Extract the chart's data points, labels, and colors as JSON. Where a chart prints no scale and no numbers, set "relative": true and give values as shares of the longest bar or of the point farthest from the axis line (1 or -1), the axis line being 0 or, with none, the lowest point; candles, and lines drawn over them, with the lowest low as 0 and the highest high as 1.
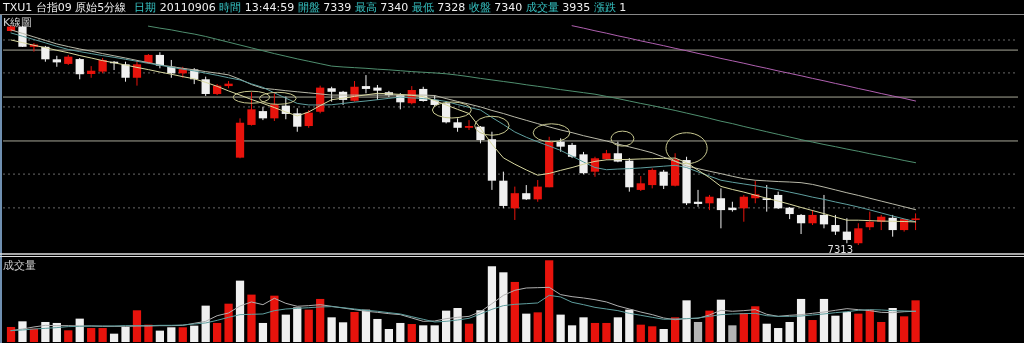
{
  "chart_data": [
    {
      "type": "candlestick",
      "title": "TXU1 台指09 原始5分線",
      "subtitle": "日期 20110906 時間 13:44:59 開盤 7339 最高 7340 最低 7328 收盤 7340 成交量 3935 漲跌 1",
      "ylabel": "K線圖",
      "annotations": [
        "7313"
      ],
      "relative": true,
      "categories": [
        null,
        null,
        null,
        null,
        null,
        null,
        null,
        null,
        null,
        null,
        null,
        null,
        null,
        null,
        null,
        null,
        null,
        null,
        null,
        null,
        null,
        null,
        null,
        null,
        null,
        null,
        null,
        null,
        null,
        null,
        null,
        null,
        null,
        null,
        null,
        null,
        null,
        null,
        null,
        null,
        null,
        null,
        null,
        null,
        null,
        null,
        null,
        null,
        null,
        null,
        null,
        null,
        null,
        null,
        null,
        null,
        null,
        null,
        null,
        null,
        null,
        null,
        null,
        null,
        null,
        null,
        null,
        null,
        null,
        null,
        null,
        null,
        null,
        null,
        null,
        null,
        null,
        null,
        null,
        null
      ],
      "ohlc": [
        [
          0.975,
          1,
          0.972,
          0.995
        ],
        [
          0.995,
          0.998,
          0.902,
          0.903
        ],
        [
          0.903,
          0.92,
          0.881,
          0.913
        ],
        [
          0.903,
          0.907,
          0.835,
          0.846
        ],
        [
          0.846,
          0.862,
          0.812,
          0.832
        ],
        [
          0.825,
          0.866,
          0.82,
          0.858
        ],
        [
          0.847,
          0.852,
          0.755,
          0.778
        ],
        [
          0.779,
          0.815,
          0.762,
          0.794
        ],
        [
          0.79,
          0.852,
          0.782,
          0.843
        ],
        [
          0.835,
          0.838,
          0.797,
          0.832
        ],
        [
          0.823,
          0.835,
          0.744,
          0.762
        ],
        [
          0.762,
          0.843,
          0.726,
          0.823
        ],
        [
          0.828,
          0.87,
          0.825,
          0.866
        ],
        [
          0.866,
          0.878,
          0.805,
          0.817
        ],
        [
          0.812,
          0.843,
          0.762,
          0.782
        ],
        [
          0.782,
          0.812,
          0.762,
          0.805
        ],
        [
          0.8,
          0.806,
          0.733,
          0.755
        ],
        [
          0.755,
          0.767,
          0.679,
          0.688
        ],
        [
          0.688,
          0.733,
          0.683,
          0.726
        ],
        [
          0.724,
          0.747,
          0.714,
          0.735
        ],
        [
          0.398,
          0.577,
          0.395,
          0.557
        ],
        [
          0.547,
          0.696,
          0.544,
          0.618
        ],
        [
          0.61,
          0.63,
          0.569,
          0.577
        ],
        [
          0.577,
          0.691,
          0.565,
          0.641
        ],
        [
          0.635,
          0.676,
          0.573,
          0.597
        ],
        [
          0.6,
          0.623,
          0.516,
          0.539
        ],
        [
          0.542,
          0.615,
          0.534,
          0.603
        ],
        [
          0.607,
          0.726,
          0.6,
          0.717
        ],
        [
          0.714,
          0.721,
          0.653,
          0.698
        ],
        [
          0.698,
          0.702,
          0.638,
          0.661
        ],
        [
          0.657,
          0.747,
          0.653,
          0.721
        ],
        [
          0.724,
          0.774,
          0.691,
          0.711
        ],
        [
          0.717,
          0.729,
          0.661,
          0.703
        ],
        [
          0.696,
          0.702,
          0.674,
          0.683
        ],
        [
          0.683,
          0.692,
          0.618,
          0.65
        ],
        [
          0.646,
          0.724,
          0.641,
          0.706
        ],
        [
          0.711,
          0.721,
          0.653,
          0.656
        ],
        [
          0.661,
          0.683,
          0.63,
          0.638
        ],
        [
          0.646,
          0.656,
          0.554,
          0.559
        ],
        [
          0.559,
          0.577,
          0.516,
          0.534
        ],
        [
          0.534,
          0.569,
          0.524,
          0.542
        ],
        [
          0.539,
          0.542,
          0.463,
          0.478
        ],
        [
          0.482,
          0.516,
          0.251,
          0.293
        ],
        [
          0.293,
          0.334,
          0.167,
          0.178
        ],
        [
          0.167,
          0.266,
          0.114,
          0.236
        ],
        [
          0.236,
          0.273,
          0.205,
          0.208
        ],
        [
          0.208,
          0.296,
          0.197,
          0.266
        ],
        [
          0.263,
          0.493,
          0.263,
          0.471
        ],
        [
          0.471,
          0.486,
          0.425,
          0.448
        ],
        [
          0.456,
          0.465,
          0.396,
          0.402
        ],
        [
          0.413,
          0.424,
          0.322,
          0.327
        ],
        [
          0.334,
          0.402,
          0.311,
          0.395
        ],
        [
          0.392,
          0.433,
          0.387,
          0.418
        ],
        [
          0.418,
          0.471,
          0.377,
          0.38
        ],
        [
          0.384,
          0.396,
          0.243,
          0.263
        ],
        [
          0.251,
          0.314,
          0.246,
          0.281
        ],
        [
          0.273,
          0.349,
          0.258,
          0.342
        ],
        [
          0.334,
          0.342,
          0.255,
          0.27
        ],
        [
          0.27,
          0.418,
          0.267,
          0.39
        ],
        [
          0.387,
          0.402,
          0.182,
          0.19
        ],
        [
          0.197,
          0.251,
          0.174,
          0.187
        ],
        [
          0.19,
          0.228,
          0.159,
          0.22
        ],
        [
          0.213,
          0.258,
          0.076,
          0.159
        ],
        [
          0.17,
          0.197,
          0.152,
          0.159
        ],
        [
          0.167,
          0.228,
          0.106,
          0.22
        ],
        [
          0.213,
          0.292,
          0.19,
          0.231
        ],
        [
          0.213,
          0.273,
          0.152,
          0.205
        ],
        [
          0.228,
          0.243,
          0.164,
          0.167
        ],
        [
          0.17,
          0.173,
          0.118,
          0.141
        ],
        [
          0.137,
          0.141,
          0.05,
          0.099
        ],
        [
          0.099,
          0.159,
          0.091,
          0.137
        ],
        [
          0.137,
          0.228,
          0.076,
          0.094
        ],
        [
          0.091,
          0.137,
          0.046,
          0.061
        ],
        [
          0.061,
          0.122,
          0.008,
          0.023
        ],
        [
          0.008,
          0.099,
          0,
          0.076
        ],
        [
          0.081,
          0.152,
          0.068,
          0.106
        ],
        [
          0.106,
          0.137,
          0.068,
          0.129
        ],
        [
          0.124,
          0.137,
          0.038,
          0.068
        ],
        [
          0.068,
          0.118,
          0.061,
          0.118
        ],
        [
          0.117,
          0.144,
          0.068,
          0.121
        ]
      ],
      "colors": [
        "#e8130c",
        "#f0f0f0",
        "#e8130c",
        "#f0f0f0",
        "#f0f0f0",
        "#e8130c",
        "#f0f0f0",
        "#e8130c",
        "#e8130c",
        "#f0f0f0",
        "#f0f0f0",
        "#e8130c",
        "#e8130c",
        "#f0f0f0",
        "#f0f0f0",
        "#e8130c",
        "#f0f0f0",
        "#f0f0f0",
        "#e8130c",
        "#e8130c",
        "#e8130c",
        "#e8130c",
        "#f0f0f0",
        "#e8130c",
        "#f0f0f0",
        "#f0f0f0",
        "#e8130c",
        "#e8130c",
        "#f0f0f0",
        "#f0f0f0",
        "#e8130c",
        "#f0f0f0",
        "#f0f0f0",
        "#f0f0f0",
        "#f0f0f0",
        "#e8130c",
        "#f0f0f0",
        "#f0f0f0",
        "#f0f0f0",
        "#f0f0f0",
        "#e8130c",
        "#f0f0f0",
        "#f0f0f0",
        "#f0f0f0",
        "#e8130c",
        "#f0f0f0",
        "#e8130c",
        "#e8130c",
        "#f0f0f0",
        "#f0f0f0",
        "#f0f0f0",
        "#e8130c",
        "#e8130c",
        "#f0f0f0",
        "#f0f0f0",
        "#e8130c",
        "#e8130c",
        "#f0f0f0",
        "#e8130c",
        "#f0f0f0",
        "#f0f0f0",
        "#e8130c",
        "#f0f0f0",
        "#f0f0f0",
        "#e8130c",
        "#e8130c",
        "#f0f0f0",
        "#f0f0f0",
        "#f0f0f0",
        "#f0f0f0",
        "#e8130c",
        "#f0f0f0",
        "#f0f0f0",
        "#f0f0f0",
        "#e8130c",
        "#e8130c",
        "#e8130c",
        "#f0f0f0",
        "#e8130c",
        "#e8130c"
      ],
      "series": [
        {
          "type": "line",
          "color": "#b060b0",
          "values": [
            null,
            null,
            null,
            null,
            null,
            null,
            null,
            null,
            null,
            null,
            null,
            null,
            null,
            null,
            null,
            null,
            null,
            null,
            null,
            null,
            null,
            null,
            null,
            null,
            null,
            null,
            null,
            null,
            null,
            null,
            null,
            null,
            null,
            null,
            null,
            null,
            null,
            null,
            null,
            null,
            null,
            null,
            null,
            null,
            null,
            null,
            null,
            null,
            null,
            0.999,
            0.988,
            0.976,
            0.965,
            0.953,
            0.942,
            0.93,
            0.919,
            0.908,
            0.896,
            0.885,
            0.873,
            0.862,
            0.85,
            0.839,
            0.828,
            0.816,
            0.805,
            0.793,
            0.782,
            0.771,
            0.759,
            0.748,
            0.736,
            0.725,
            0.713,
            0.702,
            0.69,
            0.679,
            0.668,
            0.656
          ]
        },
        {
          "type": "line",
          "color": "#4f8f6f",
          "values": [
            null,
            null,
            null,
            null,
            null,
            null,
            null,
            null,
            null,
            null,
            null,
            null,
            0.997,
            0.988,
            0.98,
            0.97,
            0.961,
            0.95,
            0.937,
            0.924,
            0.911,
            0.898,
            0.885,
            0.872,
            0.86,
            0.848,
            0.837,
            0.826,
            0.815,
            0.811,
            0.808,
            0.805,
            0.801,
            0.798,
            0.794,
            0.79,
            0.787,
            0.784,
            0.78,
            0.774,
            0.767,
            0.759,
            0.752,
            0.745,
            0.738,
            0.73,
            0.723,
            0.716,
            0.708,
            0.701,
            0.694,
            0.687,
            0.677,
            0.667,
            0.656,
            0.645,
            0.635,
            0.624,
            0.613,
            0.601,
            0.589,
            0.577,
            0.564,
            0.553,
            0.54,
            0.528,
            0.516,
            0.504,
            0.492,
            0.48,
            0.469,
            0.458,
            0.448,
            0.437,
            0.427,
            0.416,
            0.406,
            0.396,
            0.385,
            0.375
          ]
        },
        {
          "type": "line",
          "color": "#b8b8a8",
          "values": [
            0.98,
            0.964,
            0.948,
            0.932,
            0.916,
            0.904,
            0.893,
            0.883,
            0.872,
            0.862,
            0.852,
            0.841,
            0.831,
            0.82,
            0.813,
            0.805,
            0.798,
            0.79,
            0.783,
            0.775,
            0.755,
            0.731,
            0.714,
            0.709,
            0.703,
            0.698,
            0.693,
            0.688,
            0.683,
            0.683,
            0.683,
            0.683,
            0.683,
            0.683,
            0.683,
            0.683,
            0.683,
            0.681,
            0.667,
            0.654,
            0.642,
            0.629,
            0.613,
            0.599,
            0.583,
            0.568,
            0.553,
            0.538,
            0.524,
            0.512,
            0.498,
            0.486,
            0.474,
            0.46,
            0.447,
            0.434,
            0.42,
            0.4,
            0.381,
            0.36,
            0.348,
            0.336,
            0.325,
            0.313,
            0.302,
            0.295,
            0.292,
            0.289,
            0.287,
            0.284,
            0.276,
            0.264,
            0.251,
            0.238,
            0.226,
            0.213,
            0.2,
            0.187,
            0.174,
            0.161
          ]
        },
        {
          "type": "line",
          "color": "#5f9f9f",
          "values": [
            0.966,
            0.951,
            0.936,
            0.921,
            0.905,
            0.891,
            0.881,
            0.872,
            0.863,
            0.855,
            0.846,
            0.837,
            0.828,
            0.819,
            0.81,
            0.801,
            0.793,
            0.783,
            0.773,
            0.762,
            0.752,
            0.734,
            0.718,
            0.693,
            0.669,
            0.645,
            0.638,
            0.638,
            0.639,
            0.645,
            0.651,
            0.656,
            0.662,
            0.668,
            0.674,
            0.67,
            0.667,
            0.662,
            0.654,
            0.64,
            0.627,
            0.615,
            0.581,
            0.549,
            0.515,
            0.491,
            0.47,
            0.451,
            0.431,
            0.405,
            0.378,
            0.353,
            0.343,
            0.346,
            0.348,
            0.351,
            0.355,
            0.359,
            0.363,
            0.353,
            0.333,
            0.314,
            0.295,
            0.286,
            0.278,
            0.27,
            0.261,
            0.252,
            0.241,
            0.23,
            0.218,
            0.208,
            0.196,
            0.185,
            0.173,
            0.16,
            0.146,
            0.132,
            0.119,
            0.106
          ]
        },
        {
          "type": "line",
          "color": "#d8d8a0",
          "values": [
            0.934,
            0.922,
            0.91,
            0.899,
            0.887,
            0.876,
            0.863,
            0.852,
            0.84,
            0.83,
            0.82,
            0.809,
            0.799,
            0.788,
            0.778,
            0.767,
            0.757,
            0.741,
            0.723,
            0.702,
            0.683,
            0.663,
            0.645,
            0.626,
            0.606,
            0.588,
            0.606,
            0.635,
            0.662,
            0.669,
            0.677,
            0.684,
            0.691,
            0.689,
            0.686,
            0.682,
            0.676,
            0.658,
            0.638,
            0.618,
            0.599,
            0.532,
            0.459,
            0.397,
            0.368,
            0.342,
            0.318,
            0.326,
            0.34,
            0.353,
            0.368,
            0.381,
            0.388,
            0.389,
            0.39,
            0.392,
            0.393,
            0.395,
            0.396,
            0.375,
            0.341,
            0.307,
            0.267,
            0.253,
            0.241,
            0.227,
            0.213,
            0.2,
            0.186,
            0.171,
            0.157,
            0.143,
            0.127,
            0.113,
            0.113,
            0.111,
            0.109,
            0.108,
            0.107,
            0.105
          ]
        }
      ],
      "ref_lines": [
        {
          "axis": "y",
          "value": 0.888,
          "color": "#a8a898",
          "line_style": "solid"
        },
        {
          "axis": "y",
          "value": 0.674,
          "color": "#a8a898",
          "line_style": "solid"
        },
        {
          "axis": "y",
          "value": 0.474,
          "color": "#a8a898",
          "line_style": "solid"
        },
        {
          "axis": "y",
          "value": 0.934,
          "color": "#6a6a6a",
          "line_style": "dotted"
        },
        {
          "axis": "y",
          "value": 0.784,
          "color": "#6a6a6a",
          "line_style": "dotted"
        },
        {
          "axis": "y",
          "value": 0.629,
          "color": "#6a6a6a",
          "line_style": "dotted"
        },
        {
          "axis": "y",
          "value": 0.323,
          "color": "#6a6a6a",
          "line_style": "dotted"
        },
        {
          "axis": "y",
          "value": 0.169,
          "color": "#6a6a6a",
          "line_style": "dotted"
        }
      ]
    },
    {
      "type": "bar",
      "ylabel": "成交量",
      "relative": true,
      "categories": [
        null,
        null,
        null,
        null,
        null,
        null,
        null,
        null,
        null,
        null,
        null,
        null,
        null,
        null,
        null,
        null,
        null,
        null,
        null,
        null,
        null,
        null,
        null,
        null,
        null,
        null,
        null,
        null,
        null,
        null,
        null,
        null,
        null,
        null,
        null,
        null,
        null,
        null,
        null,
        null,
        null,
        null,
        null,
        null,
        null,
        null,
        null,
        null,
        null,
        null,
        null,
        null,
        null,
        null,
        null,
        null,
        null,
        null,
        null,
        null,
        null,
        null,
        null,
        null,
        null,
        null,
        null,
        null,
        null,
        null,
        null,
        null,
        null,
        null,
        null,
        null,
        null,
        null,
        null,
        null
      ],
      "series": [
        {
          "type": "bar",
          "values": [
            0.184,
            0.253,
            0.163,
            0.245,
            0.233,
            0.143,
            0.286,
            0.171,
            0.171,
            0.102,
            0.184,
            0.388,
            0.212,
            0.139,
            0.18,
            0.18,
            0.2,
            0.445,
            0.233,
            0.469,
            0.751,
            0.58,
            0.233,
            0.567,
            0.335,
            0.424,
            0.396,
            0.527,
            0.302,
            0.241,
            0.367,
            0.396,
            0.282,
            0.159,
            0.233,
            0.22,
            0.204,
            0.204,
            0.384,
            0.416,
            0.224,
            0.388,
            0.927,
            0.853,
            0.735,
            0.347,
            0.363,
            1,
            0.335,
            0.204,
            0.302,
            0.233,
            0.233,
            0.302,
            0.396,
            0.212,
            0.192,
            0.159,
            0.302,
            0.51,
            0.245,
            0.384,
            0.518,
            0.204,
            0.355,
            0.437,
            0.224,
            0.171,
            0.245,
            0.527,
            0.269,
            0.527,
            0.322,
            0.367,
            0.347,
            0.396,
            0.245,
            0.416,
            0.314,
            0.51
          ],
          "colors": [
            "#e8130c",
            "#f0f0f0",
            "#e8130c",
            "#f0f0f0",
            "#f0f0f0",
            "#e8130c",
            "#f0f0f0",
            "#e8130c",
            "#e8130c",
            "#f0f0f0",
            "#f0f0f0",
            "#e8130c",
            "#e8130c",
            "#f0f0f0",
            "#f0f0f0",
            "#e8130c",
            "#f0f0f0",
            "#f0f0f0",
            "#e8130c",
            "#e8130c",
            "#f0f0f0",
            "#e8130c",
            "#f0f0f0",
            "#e8130c",
            "#f0f0f0",
            "#f0f0f0",
            "#e8130c",
            "#e8130c",
            "#f0f0f0",
            "#f0f0f0",
            "#e8130c",
            "#f0f0f0",
            "#f0f0f0",
            "#f0f0f0",
            "#f0f0f0",
            "#e8130c",
            "#f0f0f0",
            "#f0f0f0",
            "#f0f0f0",
            "#f0f0f0",
            "#e8130c",
            "#f0f0f0",
            "#f0f0f0",
            "#f0f0f0",
            "#e8130c",
            "#f0f0f0",
            "#e8130c",
            "#e8130c",
            "#f0f0f0",
            "#f0f0f0",
            "#f0f0f0",
            "#e8130c",
            "#e8130c",
            "#f0f0f0",
            "#f0f0f0",
            "#e8130c",
            "#e8130c",
            "#f0f0f0",
            "#e8130c",
            "#f0f0f0",
            "#b4b4b4",
            "#e8130c",
            "#f0f0f0",
            "#b4b4b4",
            "#e8130c",
            "#e8130c",
            "#f0f0f0",
            "#f0f0f0",
            "#f0f0f0",
            "#f0f0f0",
            "#e8130c",
            "#f0f0f0",
            "#f0f0f0",
            "#f0f0f0",
            "#e8130c",
            "#e8130c",
            "#e8130c",
            "#f0f0f0",
            "#e8130c",
            "#e8130c"
          ]
        },
        {
          "type": "line",
          "color": "#b0b0b0",
          "values": [
            0.139,
            0.159,
            0.184,
            0.204,
            0.2,
            0.2,
            0.196,
            0.196,
            0.192,
            0.192,
            0.192,
            0.196,
            0.196,
            0.2,
            0.2,
            0.204,
            0.229,
            0.253,
            0.322,
            0.355,
            0.441,
            0.49,
            0.457,
            0.535,
            0.473,
            0.437,
            0.445,
            0.457,
            0.437,
            0.416,
            0.396,
            0.376,
            0.363,
            0.347,
            0.335,
            0.294,
            0.253,
            0.257,
            0.286,
            0.302,
            0.314,
            0.371,
            0.469,
            0.571,
            0.633,
            0.661,
            0.665,
            0.669,
            0.58,
            0.555,
            0.539,
            0.518,
            0.49,
            0.441,
            0.404,
            0.367,
            0.335,
            0.294,
            0.273,
            0.286,
            0.29,
            0.331,
            0.388,
            0.376,
            0.384,
            0.396,
            0.339,
            0.314,
            0.327,
            0.335,
            0.351,
            0.367,
            0.388,
            0.408,
            0.396,
            0.384,
            0.363,
            0.359,
            0.371,
            0.376
          ]
        },
        {
          "type": "line",
          "color": "#5f9f9f",
          "values": [
            0.139,
            0.147,
            0.159,
            0.167,
            0.176,
            0.188,
            0.192,
            0.196,
            0.196,
            0.196,
            0.2,
            0.2,
            0.2,
            0.204,
            0.204,
            0.208,
            0.22,
            0.233,
            0.265,
            0.302,
            0.335,
            0.339,
            0.343,
            0.384,
            0.404,
            0.412,
            0.42,
            0.429,
            0.433,
            0.42,
            0.404,
            0.388,
            0.376,
            0.359,
            0.343,
            0.31,
            0.278,
            0.245,
            0.253,
            0.269,
            0.29,
            0.343,
            0.4,
            0.445,
            0.461,
            0.469,
            0.478,
            0.571,
            0.551,
            0.486,
            0.457,
            0.424,
            0.404,
            0.384,
            0.351,
            0.327,
            0.302,
            0.278,
            0.282,
            0.286,
            0.294,
            0.314,
            0.335,
            0.343,
            0.347,
            0.351,
            0.322,
            0.314,
            0.314,
            0.318,
            0.331,
            0.343,
            0.359,
            0.371,
            0.388,
            0.396,
            0.392,
            0.384,
            0.38,
            0.376
          ]
        }
      ]
    }
  ]
}
